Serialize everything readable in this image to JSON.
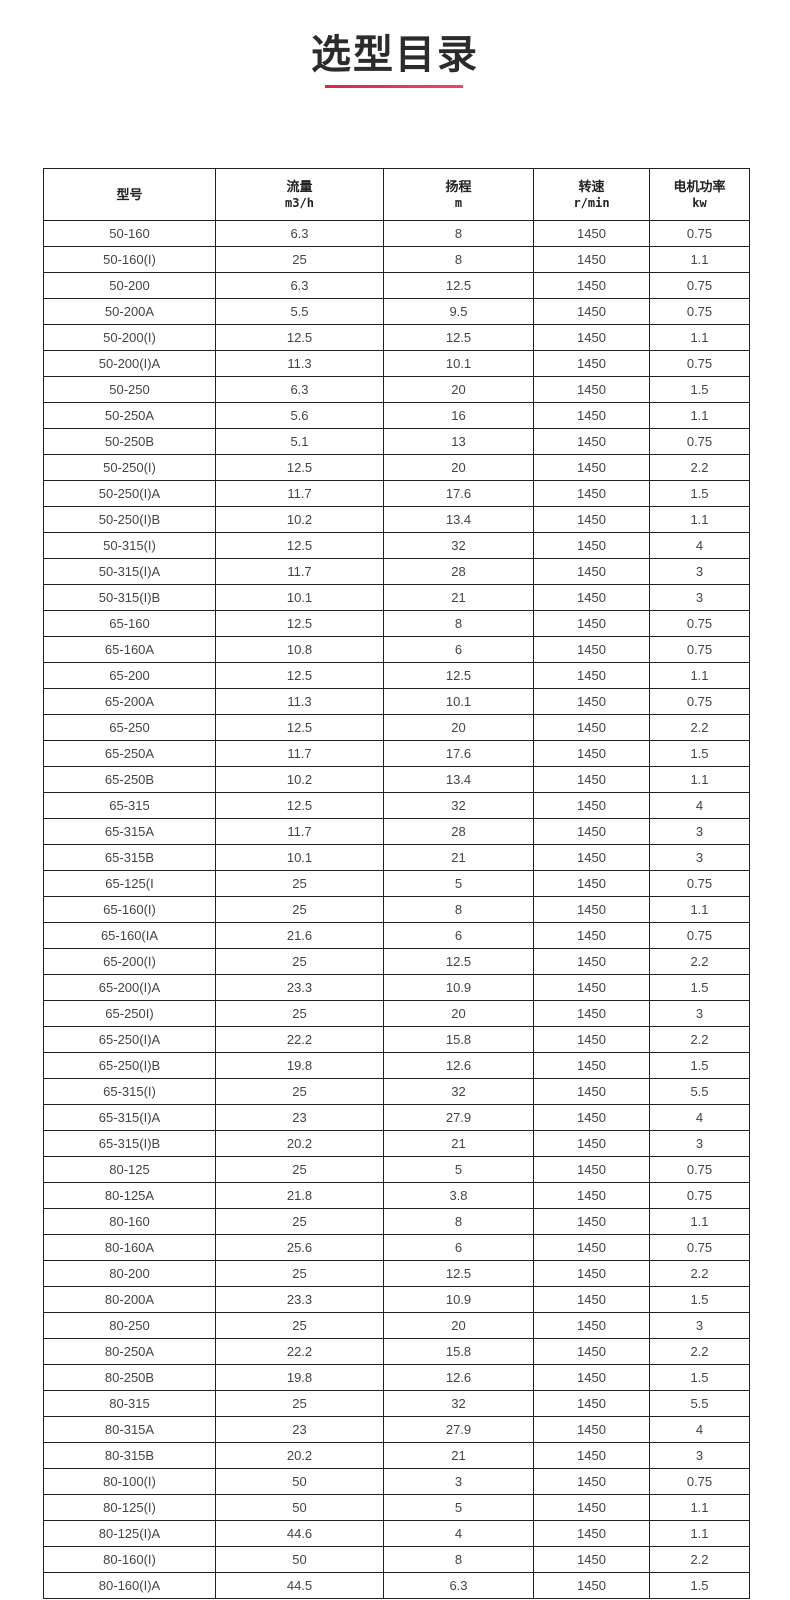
{
  "title": "选型目录",
  "accent_color": "#e0344f",
  "table": {
    "headers": [
      {
        "label": "型号",
        "unit": ""
      },
      {
        "label": "流量",
        "unit": "m3/h"
      },
      {
        "label": "扬程",
        "unit": "m"
      },
      {
        "label": "转速",
        "unit": "r/min"
      },
      {
        "label": "电机功率",
        "unit": "kw"
      }
    ],
    "rows": [
      [
        "50-160",
        "6.3",
        "8",
        "1450",
        "0.75"
      ],
      [
        "50-160(I)",
        "25",
        "8",
        "1450",
        "1.1"
      ],
      [
        "50-200",
        "6.3",
        "12.5",
        "1450",
        "0.75"
      ],
      [
        "50-200A",
        "5.5",
        "9.5",
        "1450",
        "0.75"
      ],
      [
        "50-200(I)",
        "12.5",
        "12.5",
        "1450",
        "1.1"
      ],
      [
        "50-200(I)A",
        "11.3",
        "10.1",
        "1450",
        "0.75"
      ],
      [
        "50-250",
        "6.3",
        "20",
        "1450",
        "1.5"
      ],
      [
        "50-250A",
        "5.6",
        "16",
        "1450",
        "1.1"
      ],
      [
        "50-250B",
        "5.1",
        "13",
        "1450",
        "0.75"
      ],
      [
        "50-250(I)",
        "12.5",
        "20",
        "1450",
        "2.2"
      ],
      [
        "50-250(I)A",
        "11.7",
        "17.6",
        "1450",
        "1.5"
      ],
      [
        "50-250(I)B",
        "10.2",
        "13.4",
        "1450",
        "1.1"
      ],
      [
        "50-315(I)",
        "12.5",
        "32",
        "1450",
        "4"
      ],
      [
        "50-315(I)A",
        "11.7",
        "28",
        "1450",
        "3"
      ],
      [
        "50-315(I)B",
        "10.1",
        "21",
        "1450",
        "3"
      ],
      [
        "65-160",
        "12.5",
        "8",
        "1450",
        "0.75"
      ],
      [
        "65-160A",
        "10.8",
        "6",
        "1450",
        "0.75"
      ],
      [
        "65-200",
        "12.5",
        "12.5",
        "1450",
        "1.1"
      ],
      [
        "65-200A",
        "11.3",
        "10.1",
        "1450",
        "0.75"
      ],
      [
        "65-250",
        "12.5",
        "20",
        "1450",
        "2.2"
      ],
      [
        "65-250A",
        "11.7",
        "17.6",
        "1450",
        "1.5"
      ],
      [
        "65-250B",
        "10.2",
        "13.4",
        "1450",
        "1.1"
      ],
      [
        "65-315",
        "12.5",
        "32",
        "1450",
        "4"
      ],
      [
        "65-315A",
        "11.7",
        "28",
        "1450",
        "3"
      ],
      [
        "65-315B",
        "10.1",
        "21",
        "1450",
        "3"
      ],
      [
        "65-125(I",
        "25",
        "5",
        "1450",
        "0.75"
      ],
      [
        "65-160(I)",
        "25",
        "8",
        "1450",
        "1.1"
      ],
      [
        "65-160(IA",
        "21.6",
        "6",
        "1450",
        "0.75"
      ],
      [
        "65-200(I)",
        "25",
        "12.5",
        "1450",
        "2.2"
      ],
      [
        "65-200(I)A",
        "23.3",
        "10.9",
        "1450",
        "1.5"
      ],
      [
        "65-250I)",
        "25",
        "20",
        "1450",
        "3"
      ],
      [
        "65-250(I)A",
        "22.2",
        "15.8",
        "1450",
        "2.2"
      ],
      [
        "65-250(I)B",
        "19.8",
        "12.6",
        "1450",
        "1.5"
      ],
      [
        "65-315(I)",
        "25",
        "32",
        "1450",
        "5.5"
      ],
      [
        "65-315(I)A",
        "23",
        "27.9",
        "1450",
        "4"
      ],
      [
        "65-315(I)B",
        "20.2",
        "21",
        "1450",
        "3"
      ],
      [
        "80-125",
        "25",
        "5",
        "1450",
        "0.75"
      ],
      [
        "80-125A",
        "21.8",
        "3.8",
        "1450",
        "0.75"
      ],
      [
        "80-160",
        "25",
        "8",
        "1450",
        "1.1"
      ],
      [
        "80-160A",
        "25.6",
        "6",
        "1450",
        "0.75"
      ],
      [
        "80-200",
        "25",
        "12.5",
        "1450",
        "2.2"
      ],
      [
        "80-200A",
        "23.3",
        "10.9",
        "1450",
        "1.5"
      ],
      [
        "80-250",
        "25",
        "20",
        "1450",
        "3"
      ],
      [
        "80-250A",
        "22.2",
        "15.8",
        "1450",
        "2.2"
      ],
      [
        "80-250B",
        "19.8",
        "12.6",
        "1450",
        "1.5"
      ],
      [
        "80-315",
        "25",
        "32",
        "1450",
        "5.5"
      ],
      [
        "80-315A",
        "23",
        "27.9",
        "1450",
        "4"
      ],
      [
        "80-315B",
        "20.2",
        "21",
        "1450",
        "3"
      ],
      [
        "80-100(I)",
        "50",
        "3",
        "1450",
        "0.75"
      ],
      [
        "80-125(I)",
        "50",
        "5",
        "1450",
        "1.1"
      ],
      [
        "80-125(I)A",
        "44.6",
        "4",
        "1450",
        "1.1"
      ],
      [
        "80-160(I)",
        "50",
        "8",
        "1450",
        "2.2"
      ],
      [
        "80-160(I)A",
        "44.5",
        "6.3",
        "1450",
        "1.5"
      ]
    ]
  }
}
